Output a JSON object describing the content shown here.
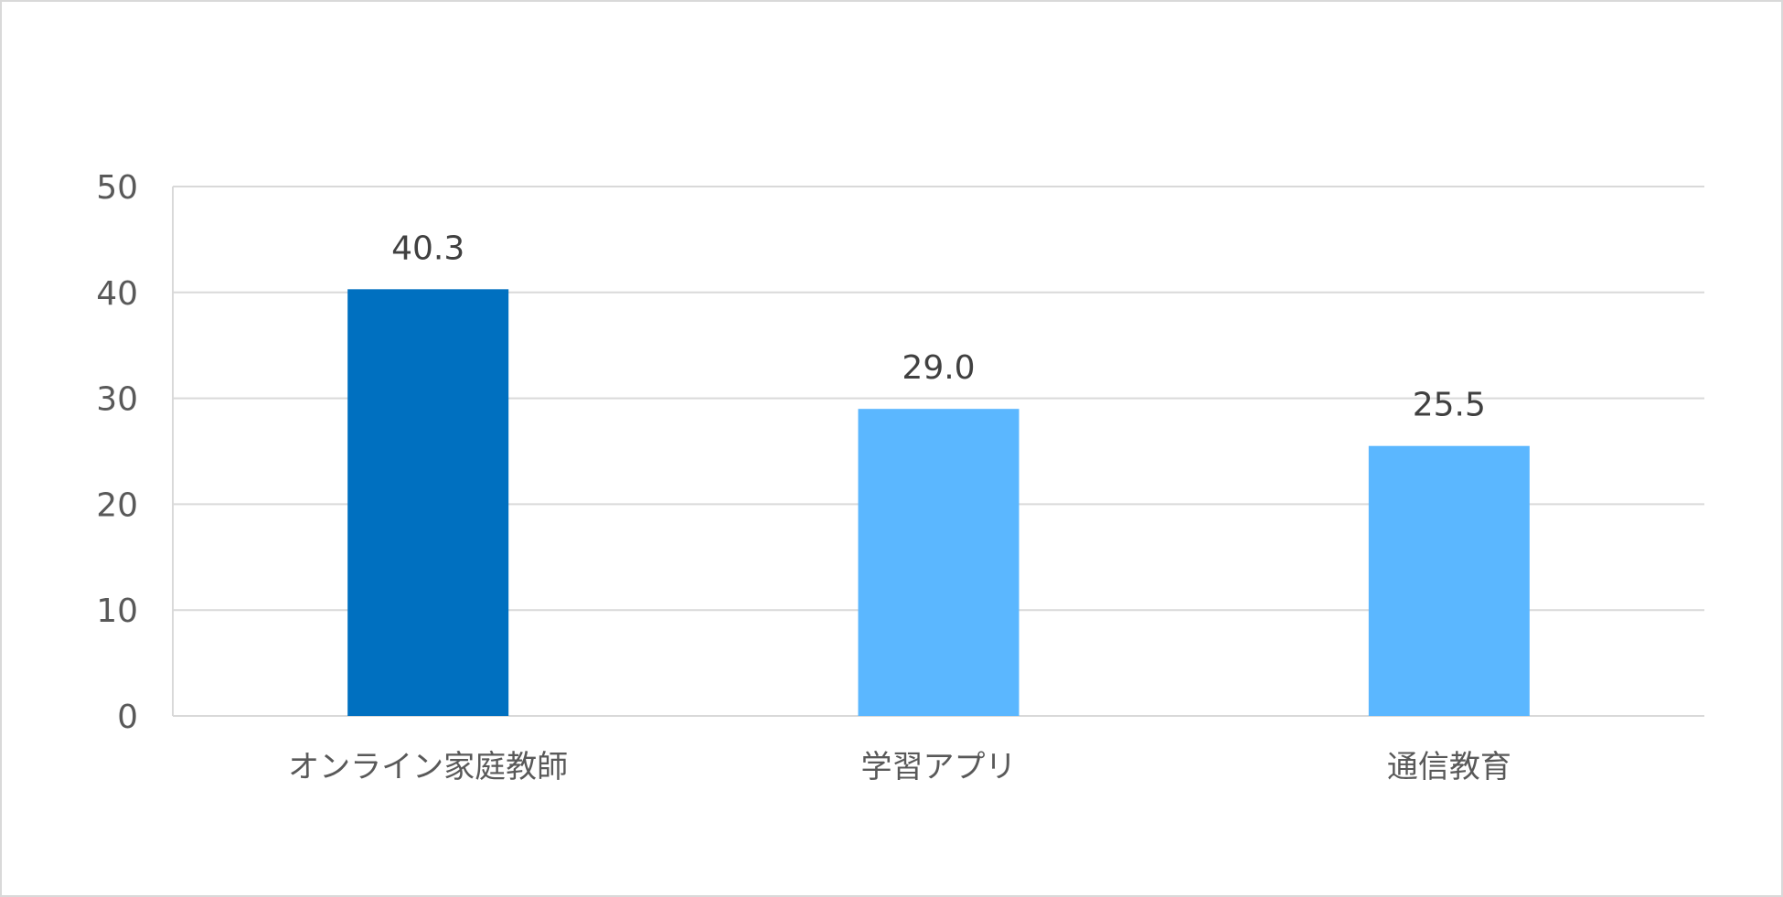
{
  "chart_data": {
    "type": "bar",
    "categories": [
      "オンライン家庭教師",
      "学習アプリ",
      "通信教育"
    ],
    "values": [
      40.3,
      29.0,
      25.5
    ],
    "data_labels": [
      "40.3",
      "29.0",
      "25.5"
    ],
    "bar_colors": [
      "#0070c0",
      "#5bb7ff",
      "#5bb7ff"
    ],
    "ylim": [
      0,
      50
    ],
    "yticks": [
      0,
      10,
      20,
      30,
      40,
      50
    ],
    "ytick_labels": [
      "0",
      "10",
      "20",
      "30",
      "40",
      "50"
    ],
    "grid": true,
    "title": "",
    "xlabel": "",
    "ylabel": ""
  }
}
